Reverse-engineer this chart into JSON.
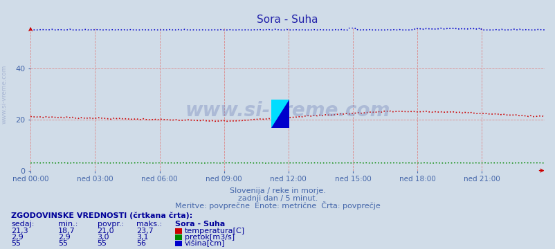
{
  "title": "Sora - Suha",
  "title_color": "#2222aa",
  "bg_color": "#d0dce8",
  "plot_bg_color": "#d0dce8",
  "grid_color": "#dd8888",
  "grid_style": "--",
  "grid_linewidth": 0.6,
  "xlim": [
    0,
    287
  ],
  "ylim": [
    0,
    56
  ],
  "yticks": [
    0,
    20,
    40
  ],
  "xtick_labels": [
    "ned 00:00",
    "ned 03:00",
    "ned 06:00",
    "ned 09:00",
    "ned 12:00",
    "ned 15:00",
    "ned 18:00",
    "ned 21:00"
  ],
  "xtick_positions": [
    0,
    36,
    72,
    108,
    144,
    180,
    216,
    252
  ],
  "n_points": 288,
  "temp_color": "#cc0000",
  "flow_color": "#008800",
  "height_color": "#0000cc",
  "line_style": ":",
  "line_width": 1.2,
  "watermark": "www.si-vreme.com",
  "subtitle1": "Slovenija / reke in morje.",
  "subtitle2": "zadnji dan / 5 minut.",
  "subtitle3": "Meritve: povprečne  Enote: metrične  Črta: povprečje",
  "subtitle_color": "#4466aa",
  "table_header": "ZGODOVINSKE VREDNOSTI (črtkana črta):",
  "col_headers": [
    "sedaj:",
    "min.:",
    "povpr.:",
    "maks.:",
    "Sora - Suha"
  ],
  "row1": [
    "21,3",
    "18,7",
    "21,0",
    "23,7",
    "temperatura[C]"
  ],
  "row2": [
    "2,9",
    "2,9",
    "3,0",
    "3,1",
    "pretok[m3/s]"
  ],
  "row3": [
    "55",
    "55",
    "55",
    "56",
    "višina[cm]"
  ],
  "table_color": "#000099",
  "tick_color": "#4466aa",
  "arrow_color": "#cc0000",
  "logo_yellow": "#ffff00",
  "logo_cyan": "#00ddff",
  "logo_blue": "#0000cc"
}
